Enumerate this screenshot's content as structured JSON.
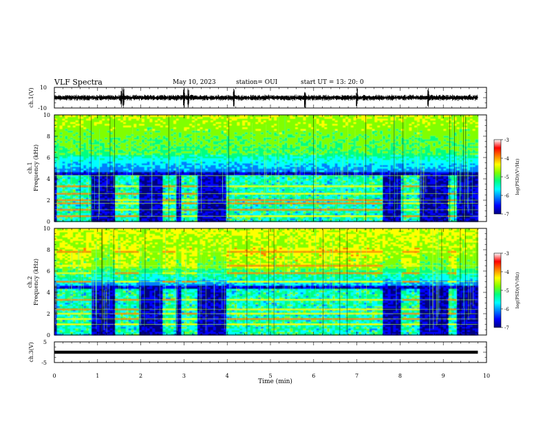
{
  "header": {
    "title": "VLF Spectra",
    "date": "May 10, 2023",
    "station": "station= OUI",
    "start": "start  UT =   13: 20: 0"
  },
  "colors": {
    "colormap": [
      "#000000",
      "#000080",
      "#0000ff",
      "#0080ff",
      "#00ffff",
      "#00ff80",
      "#80ff00",
      "#ffff00",
      "#ff8000",
      "#ff0000",
      "#ffffff"
    ],
    "trace": "#000000",
    "background": "#ffffff"
  },
  "chart_data": [
    {
      "type": "line",
      "name": "ch1-waveform",
      "ylabel": "ch.1(V)",
      "ylim": [
        -10,
        10
      ],
      "yticks": [
        "10",
        "-10"
      ],
      "x": [
        0,
        10
      ],
      "xlim": [
        0,
        10
      ],
      "level_v": 0,
      "trace_extent_min": [
        0,
        9.8
      ],
      "burst_times_min": [
        1.55,
        1.6,
        3.0,
        3.1,
        4.15,
        5.8,
        7.0,
        8.65
      ]
    },
    {
      "type": "heatmap",
      "name": "ch1-spectrogram",
      "ylabel": "ch.1\nFrequency (kHz)",
      "ylim": [
        0,
        10
      ],
      "yticks": [
        "0",
        "2",
        "4",
        "6",
        "8",
        "10"
      ],
      "xlim": [
        0,
        10
      ],
      "data_extent_min": [
        0,
        9.8
      ],
      "colorbar": {
        "label": "log(PSD)(V²/Hz)",
        "range": [
          -7,
          -3
        ],
        "ticks": [
          "-3",
          "-4",
          "-5",
          "-6",
          "-7"
        ]
      },
      "activity_windows_min": [
        [
          0.05,
          0.85
        ],
        [
          1.4,
          1.95
        ],
        [
          2.5,
          2.8
        ],
        [
          2.95,
          3.3
        ],
        [
          4.0,
          7.6
        ],
        [
          8.05,
          8.45
        ],
        [
          9.1,
          9.3
        ]
      ],
      "bands_khz": [
        0.5,
        1.1,
        1.7,
        2.0,
        2.6,
        3.3,
        4.3
      ]
    },
    {
      "type": "heatmap",
      "name": "ch2-spectrogram",
      "ylabel": "ch.2\nFrequency (kHz)",
      "ylim": [
        0,
        10
      ],
      "yticks": [
        "0",
        "2",
        "4",
        "6",
        "8",
        "10"
      ],
      "xlim": [
        0,
        10
      ],
      "data_extent_min": [
        0,
        9.8
      ],
      "colorbar": {
        "label": "log(PSD)(V²/Hz)",
        "range": [
          -7,
          -3
        ],
        "ticks": [
          "-3",
          "-4",
          "-5",
          "-6",
          "-7"
        ]
      },
      "activity_windows_min": [
        [
          0.05,
          0.85
        ],
        [
          1.4,
          1.95
        ],
        [
          2.5,
          2.8
        ],
        [
          2.95,
          3.3
        ],
        [
          4.0,
          7.6
        ],
        [
          8.05,
          8.45
        ],
        [
          9.1,
          9.3
        ]
      ],
      "bands_khz": [
        1.0,
        1.5,
        2.0,
        2.4,
        3.3,
        5.0,
        5.8,
        6.5,
        7.8
      ]
    },
    {
      "type": "line",
      "name": "ch3-waveform",
      "ylabel": "ch.3(V)",
      "ylim": [
        -5,
        5
      ],
      "yticks": [
        "5",
        "-5"
      ],
      "xlim": [
        0,
        10
      ],
      "level_v": 0,
      "trace_extent_min": [
        0,
        9.8
      ],
      "xlabel": "Time (min)",
      "xticks": [
        "0",
        "1",
        "2",
        "3",
        "4",
        "5",
        "6",
        "7",
        "8",
        "9",
        "10"
      ]
    }
  ]
}
